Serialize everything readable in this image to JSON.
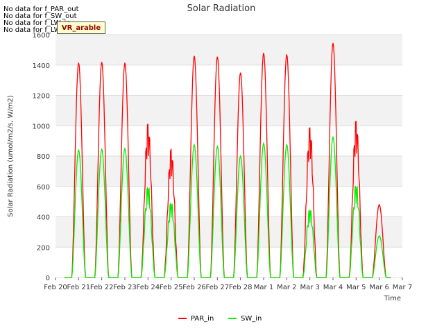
{
  "nodata_lines": [
    "No data for f_PAR_out",
    "No data for f_SW_out",
    "No data for f_LW_in",
    "No data for f_LW_out"
  ],
  "badge": "VR_arable",
  "chart_data": {
    "type": "line",
    "title": "Solar Radiation",
    "xlabel": "Time",
    "ylabel": "Solar Radiation (umol/m2/s, W/m2)",
    "ylim": [
      0,
      1600
    ],
    "yticks": [
      0,
      200,
      400,
      600,
      800,
      1000,
      1200,
      1400,
      1600
    ],
    "xlim": [
      0,
      15
    ],
    "xticks": [
      "Feb 20",
      "Feb 21",
      "Feb 22",
      "Feb 23",
      "Feb 24",
      "Feb 25",
      "Feb 26",
      "Feb 27",
      "Feb 28",
      "Mar 1",
      "Mar 2",
      "Mar 3",
      "Mar 4",
      "Mar 5",
      "Mar 6",
      "Mar 7"
    ],
    "grid": true,
    "legend_position": "bottom-center",
    "series": [
      {
        "name": "PAR_in",
        "color": "#ff0000",
        "daily_peaks": [
          1415,
          1420,
          1415,
          1045,
          870,
          1460,
          1455,
          1350,
          1480,
          1470,
          1020,
          1545,
          1065,
          480
        ]
      },
      {
        "name": "SW_in",
        "color": "#00ee00",
        "daily_peaks": [
          840,
          845,
          850,
          625,
          515,
          875,
          865,
          800,
          885,
          875,
          470,
          925,
          635,
          275
        ]
      }
    ]
  }
}
